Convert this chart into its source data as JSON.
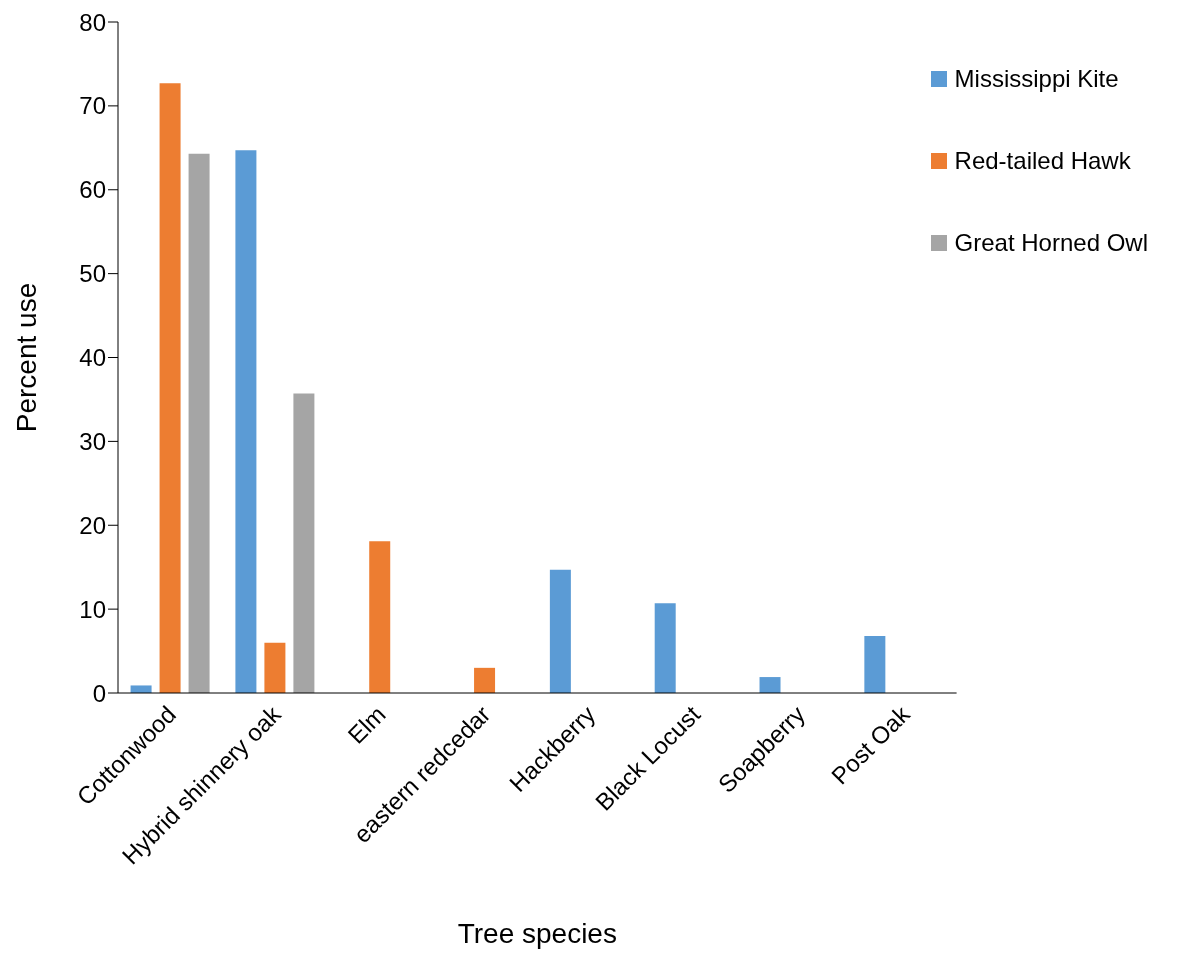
{
  "chart_data": {
    "type": "bar",
    "xlabel": "Tree species",
    "ylabel": "Percent use",
    "categories": [
      "Cottonwood",
      "Hybrid shinnery oak",
      "Elm",
      "eastern redcedar",
      "Hackberry",
      "Black Locust",
      "Soapberry",
      "Post Oak"
    ],
    "series": [
      {
        "name": "Mississippi Kite",
        "color": "#5b9bd5",
        "values": [
          0.9,
          64.7,
          null,
          null,
          14.7,
          10.7,
          1.9,
          6.8
        ]
      },
      {
        "name": "Red-tailed Hawk",
        "color": "#ed7d31",
        "values": [
          72.7,
          6.0,
          18.1,
          3.0,
          null,
          null,
          null,
          null
        ]
      },
      {
        "name": "Great Horned Owl",
        "color": "#a5a5a5",
        "values": [
          64.3,
          35.7,
          null,
          null,
          null,
          null,
          null,
          null
        ]
      }
    ],
    "ylim": [
      0,
      80
    ],
    "yticks": [
      0,
      10,
      20,
      30,
      40,
      50,
      60,
      70,
      80
    ],
    "grid": false,
    "legend": "top right"
  }
}
